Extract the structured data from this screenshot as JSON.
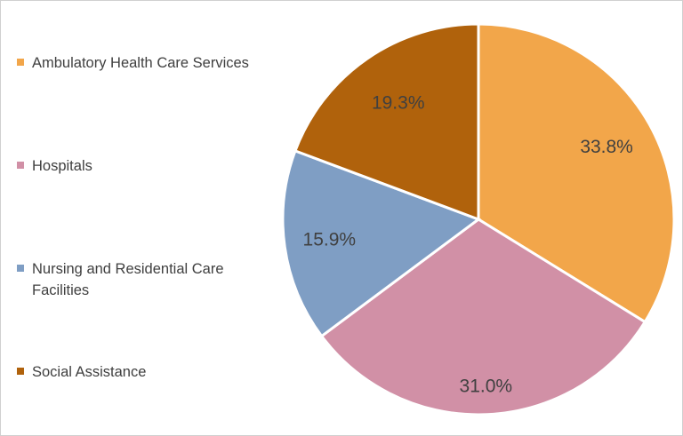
{
  "chart_data": {
    "type": "pie",
    "categories": [
      "Ambulatory Health Care Services",
      "Hospitals",
      "Nursing and Residential Care Facilities",
      "Social Assistance"
    ],
    "values": [
      33.8,
      31.0,
      15.9,
      19.3
    ],
    "data_labels": [
      "33.8%",
      "31.0%",
      "15.9%",
      "19.3%"
    ],
    "colors": [
      "#f2a64a",
      "#d190a6",
      "#7f9ec4",
      "#b0620c"
    ],
    "start_angle": "12 o'clock",
    "direction": "clockwise",
    "legend_position": "left",
    "title": ""
  }
}
